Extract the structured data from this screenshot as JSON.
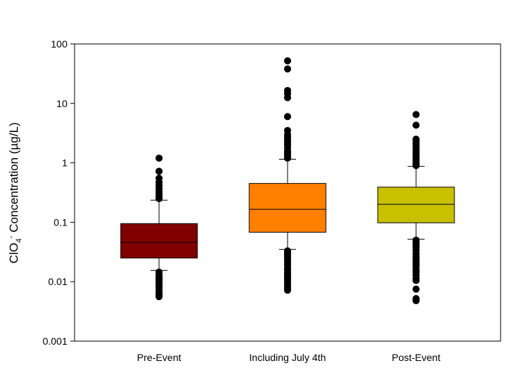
{
  "chart_data": {
    "type": "boxplot",
    "title": "",
    "xlabel": "",
    "ylabel": {
      "main": "ClO",
      "subscript": "4",
      "superscript": "-",
      "rest": " Concentration (µg/L)"
    },
    "y_scale": "log",
    "ylim": [
      0.001,
      100
    ],
    "y_ticks": [
      {
        "value": 0.001,
        "label": "0.001"
      },
      {
        "value": 0.01,
        "label": "0.01"
      },
      {
        "value": 0.1,
        "label": "0.1"
      },
      {
        "value": 1,
        "label": "1"
      },
      {
        "value": 10,
        "label": "10"
      },
      {
        "value": 100,
        "label": "100"
      }
    ],
    "grid": false,
    "categories": [
      "Pre-Event",
      "Including July 4th",
      "Post-Event"
    ],
    "series": [
      {
        "category": "Pre-Event",
        "color": "#800000",
        "q1": 0.025,
        "median": 0.046,
        "q3": 0.095,
        "whisker_low": 0.0155,
        "whisker_high": 0.235,
        "outliers": [
          1.2,
          0.72,
          0.55,
          0.47,
          0.42,
          0.37,
          0.33,
          0.3,
          0.27,
          0.25,
          0.0145,
          0.013,
          0.012,
          0.011,
          0.0105,
          0.0095,
          0.0088,
          0.008,
          0.0072,
          0.0066,
          0.006,
          0.0056
        ]
      },
      {
        "category": "Including July 4th",
        "color": "#FF8000",
        "q1": 0.068,
        "median": 0.165,
        "q3": 0.45,
        "whisker_low": 0.035,
        "whisker_high": 1.15,
        "outliers": [
          52,
          38,
          16.5,
          14.5,
          12.5,
          6.0,
          3.5,
          3.0,
          2.7,
          2.4,
          2.2,
          2.0,
          1.8,
          1.6,
          1.5,
          1.4,
          1.3,
          1.2,
          0.033,
          0.031,
          0.029,
          0.027,
          0.025,
          0.023,
          0.021,
          0.019,
          0.017,
          0.0155,
          0.014,
          0.013,
          0.012,
          0.011,
          0.01,
          0.0092,
          0.0085,
          0.0078,
          0.0072
        ]
      },
      {
        "category": "Post-Event",
        "color": "#C8C000",
        "q1": 0.098,
        "median": 0.2,
        "q3": 0.39,
        "whisker_low": 0.052,
        "whisker_high": 0.87,
        "outliers": [
          6.5,
          4.3,
          2.5,
          2.3,
          2.1,
          1.9,
          1.7,
          1.55,
          1.4,
          1.3,
          1.2,
          1.1,
          1.0,
          0.95,
          0.9,
          0.05,
          0.046,
          0.042,
          0.038,
          0.034,
          0.03,
          0.027,
          0.024,
          0.022,
          0.02,
          0.018,
          0.016,
          0.0145,
          0.013,
          0.0115,
          0.0105,
          0.0075,
          0.0052,
          0.0048
        ]
      }
    ]
  }
}
